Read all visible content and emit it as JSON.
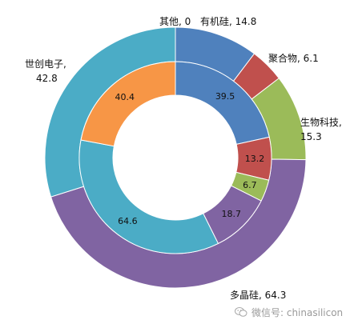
{
  "chart_data": {
    "type": "donut",
    "outer_ring": [
      {
        "label": "有机硅",
        "value": 14.8,
        "display": "有机硅, 14.8",
        "color": "#4f81bd"
      },
      {
        "label": "聚合物",
        "value": 6.1,
        "display": "聚合物, 6.1",
        "color": "#c0504d"
      },
      {
        "label": "生物科技",
        "value": 15.3,
        "display_lines": [
          "生物科技,",
          "15.3"
        ],
        "color": "#9bbb59"
      },
      {
        "label": "多晶硅",
        "value": 64.3,
        "display": "多晶硅, 64.3",
        "color": "#8064a2"
      },
      {
        "label": "世创电子",
        "value": 42.8,
        "display_lines": [
          "世创电子,",
          "42.8"
        ],
        "color": "#4bacc6"
      },
      {
        "label": "其他",
        "value": 0,
        "display": "其他, 0",
        "color": "#f79646"
      }
    ],
    "inner_ring": [
      {
        "value": 39.5,
        "display": "39.5",
        "color": "#4f81bd"
      },
      {
        "value": 13.2,
        "display": "13.2",
        "color": "#c0504d"
      },
      {
        "value": 6.7,
        "display": "6.7",
        "color": "#9bbb59"
      },
      {
        "value": 18.7,
        "display": "18.7",
        "color": "#8064a2"
      },
      {
        "value": 64.6,
        "display": "64.6",
        "color": "#4bacc6"
      },
      {
        "value": 40.4,
        "display": "40.4",
        "color": "#f79646"
      }
    ]
  },
  "watermark": {
    "text": "微信号: chinasilicon",
    "icon": "wechat-icon"
  }
}
